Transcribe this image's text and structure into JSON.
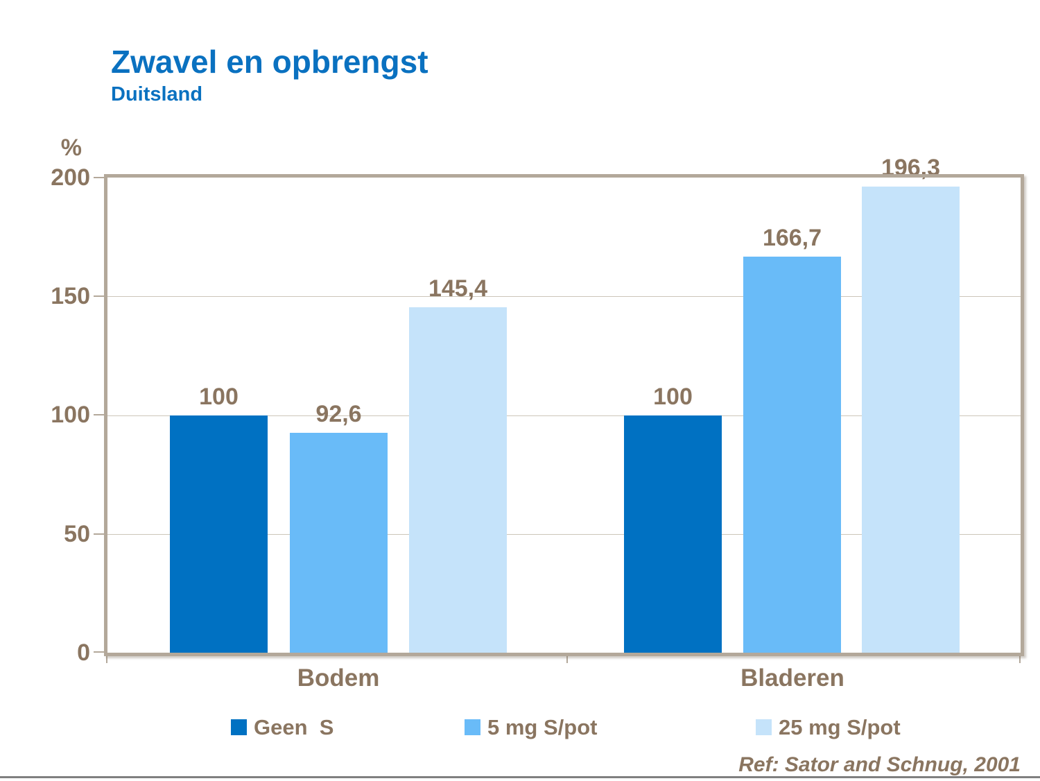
{
  "title": "Zwavel en opbrengst",
  "subtitle": "Duitsland",
  "reference": "Ref: Sator and Schnug, 2001",
  "colors": {
    "title_blue": "#0A71C0",
    "text_brown": "#8A7560",
    "axis_tan": "#B3A89A",
    "gridline": "#CCC5B9",
    "bottom_rule_gray": "#7F7F7F"
  },
  "chart_data": {
    "type": "bar",
    "title": "Zwavel en opbrengst",
    "subtitle": "Duitsland",
    "ylabel": "%",
    "xlabel": "",
    "ylim": [
      0,
      200
    ],
    "ytick_interval": 50,
    "yticks": [
      "200",
      "150",
      "100",
      "50",
      "0"
    ],
    "grid": true,
    "legend_position": "bottom",
    "categories": [
      "Bodem",
      "Bladeren"
    ],
    "series": [
      {
        "name": "Geen  S",
        "color": "#0071C2",
        "values": [
          100,
          100
        ]
      },
      {
        "name": "5 mg S/pot",
        "color": "#69BBF8",
        "values": [
          92.6,
          166.7
        ]
      },
      {
        "name": "25 mg S/pot",
        "color": "#C5E3FA",
        "values": [
          145.4,
          196.3
        ]
      }
    ],
    "value_labels": [
      [
        "100",
        "92,6",
        "145,4"
      ],
      [
        "100",
        "166,7",
        "196,3"
      ]
    ]
  }
}
